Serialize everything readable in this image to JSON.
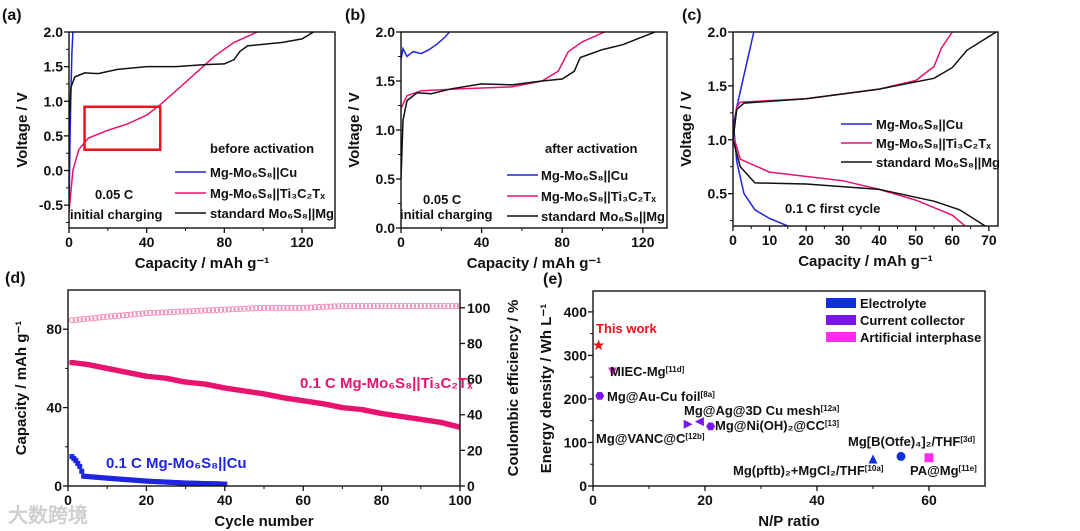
{
  "watermark": "大数跨境",
  "colors": {
    "cu": "#1f24e0",
    "ti": "#e8136f",
    "std": "#111111",
    "box": "#e8141e",
    "electrolyte": "#1030e0",
    "collector": "#7a16e8",
    "interphase": "#ff2cf0",
    "thiswork": "#e8141e"
  },
  "chart_data": [
    {
      "id": "a",
      "panel_label": "(a)",
      "type": "line",
      "xlabel": "Capacity / mAh g⁻¹",
      "ylabel": "Voltage / V",
      "xlim": [
        0,
        137
      ],
      "ylim": [
        -0.83,
        2.0
      ],
      "xticks": [
        0,
        40,
        80,
        120
      ],
      "yticks": [
        -0.5,
        0.0,
        0.5,
        1.0,
        1.5,
        2.0
      ],
      "title": "before activation",
      "note": [
        "0.05 C",
        "initial charging"
      ],
      "highlight_box": {
        "x": [
          8,
          47
        ],
        "y": [
          0.3,
          0.92
        ]
      },
      "series": [
        {
          "name": "Mg-Mo₆S₈||Cu",
          "color_key": "cu",
          "points": [
            [
              0,
              -0.6
            ],
            [
              0.5,
              0.4
            ],
            [
              1,
              1.1
            ],
            [
              1.5,
              1.7
            ],
            [
              2,
              2.0
            ]
          ]
        },
        {
          "name": "Mg-Mo₆S₈||Ti₃C₂Tₓ",
          "color_key": "ti",
          "points": [
            [
              0,
              -0.6
            ],
            [
              2,
              0.0
            ],
            [
              5,
              0.3
            ],
            [
              10,
              0.47
            ],
            [
              20,
              0.58
            ],
            [
              30,
              0.67
            ],
            [
              40,
              0.8
            ],
            [
              47,
              0.95
            ],
            [
              55,
              1.15
            ],
            [
              65,
              1.4
            ],
            [
              75,
              1.65
            ],
            [
              85,
              1.85
            ],
            [
              97,
              2.0
            ]
          ]
        },
        {
          "name": "standard Mo₆S₈||Mg",
          "color_key": "std",
          "points": [
            [
              0,
              0.6
            ],
            [
              1,
              1.2
            ],
            [
              3,
              1.35
            ],
            [
              8,
              1.41
            ],
            [
              15,
              1.4
            ],
            [
              25,
              1.46
            ],
            [
              40,
              1.5
            ],
            [
              55,
              1.5
            ],
            [
              70,
              1.53
            ],
            [
              80,
              1.54
            ],
            [
              85,
              1.6
            ],
            [
              88,
              1.72
            ],
            [
              92,
              1.8
            ],
            [
              110,
              1.85
            ],
            [
              120,
              1.9
            ],
            [
              126,
              2.0
            ]
          ]
        }
      ]
    },
    {
      "id": "b",
      "panel_label": "(b)",
      "type": "line",
      "xlabel": "Capacity / mAh g⁻¹",
      "ylabel": "Voltage / V",
      "xlim": [
        0,
        132
      ],
      "ylim": [
        0,
        2.0
      ],
      "xticks": [
        0,
        40,
        80,
        120
      ],
      "yticks": [
        0.0,
        0.5,
        1.0,
        1.5,
        2.0
      ],
      "title": "after activation",
      "note": [
        "0.05 C",
        "initial charging"
      ],
      "series": [
        {
          "name": "Mg-Mo₆S₈||Cu",
          "color_key": "cu",
          "points": [
            [
              0,
              1.72
            ],
            [
              1,
              1.83
            ],
            [
              3,
              1.75
            ],
            [
              6,
              1.8
            ],
            [
              10,
              1.78
            ],
            [
              14,
              1.82
            ],
            [
              18,
              1.88
            ],
            [
              22,
              1.95
            ],
            [
              24,
              2.0
            ]
          ]
        },
        {
          "name": "Mg-Mo₆S₈||Ti₃C₂Tₓ",
          "color_key": "ti",
          "points": [
            [
              0,
              1.22
            ],
            [
              3,
              1.35
            ],
            [
              10,
              1.4
            ],
            [
              30,
              1.42
            ],
            [
              55,
              1.44
            ],
            [
              70,
              1.5
            ],
            [
              78,
              1.6
            ],
            [
              83,
              1.8
            ],
            [
              90,
              1.9
            ],
            [
              101,
              2.0
            ]
          ]
        },
        {
          "name": "standard Mo₆S₈||Mg",
          "color_key": "std",
          "points": [
            [
              0,
              0.5
            ],
            [
              1,
              1.1
            ],
            [
              3,
              1.3
            ],
            [
              8,
              1.38
            ],
            [
              15,
              1.37
            ],
            [
              25,
              1.42
            ],
            [
              40,
              1.47
            ],
            [
              55,
              1.46
            ],
            [
              70,
              1.5
            ],
            [
              80,
              1.52
            ],
            [
              86,
              1.6
            ],
            [
              89,
              1.74
            ],
            [
              100,
              1.82
            ],
            [
              110,
              1.87
            ],
            [
              126,
              2.0
            ]
          ]
        }
      ]
    },
    {
      "id": "c",
      "panel_label": "(c)",
      "type": "line",
      "xlabel": "Capacity / mAh g⁻¹",
      "ylabel": "Voltage / V",
      "xlim": [
        0,
        72.5
      ],
      "ylim": [
        0.2,
        2.0
      ],
      "xticks": [
        0,
        10,
        20,
        30,
        40,
        50,
        60,
        70
      ],
      "yticks": [
        0.5,
        1.0,
        1.5,
        2.0
      ],
      "note": [
        "0.1 C first cycle"
      ],
      "series": [
        {
          "name": "Mg-Mo₆S₈||Cu",
          "color_key": "cu",
          "points": [
            [
              0,
              1.1
            ],
            [
              1,
              1.3
            ],
            [
              3,
              1.6
            ],
            [
              5.7,
              2.0
            ]
          ],
          "discharge": [
            [
              0,
              1.2
            ],
            [
              1,
              0.8
            ],
            [
              3,
              0.5
            ],
            [
              6,
              0.35
            ],
            [
              10,
              0.27
            ],
            [
              15,
              0.2
            ]
          ]
        },
        {
          "name": "Mg-Mo₆S₈||Ti₃C₂Tₓ",
          "color_key": "ti",
          "points": [
            [
              0,
              1.0
            ],
            [
              1,
              1.3
            ],
            [
              2,
              1.35
            ],
            [
              20,
              1.38
            ],
            [
              40,
              1.47
            ],
            [
              50,
              1.55
            ],
            [
              55,
              1.68
            ],
            [
              57,
              1.85
            ],
            [
              60,
              2.0
            ]
          ],
          "discharge": [
            [
              0,
              1.05
            ],
            [
              2,
              0.82
            ],
            [
              10,
              0.7
            ],
            [
              30,
              0.62
            ],
            [
              40,
              0.54
            ],
            [
              50,
              0.44
            ],
            [
              60,
              0.3
            ],
            [
              63.5,
              0.2
            ]
          ]
        },
        {
          "name": "standard Mo₆S₈||Mg",
          "color_key": "std",
          "points": [
            [
              0,
              1.0
            ],
            [
              1,
              1.28
            ],
            [
              3,
              1.34
            ],
            [
              20,
              1.38
            ],
            [
              40,
              1.47
            ],
            [
              55,
              1.57
            ],
            [
              60,
              1.67
            ],
            [
              64,
              1.83
            ],
            [
              72,
              2.0
            ]
          ],
          "discharge": [
            [
              0,
              1.0
            ],
            [
              2,
              0.75
            ],
            [
              6,
              0.6
            ],
            [
              20,
              0.59
            ],
            [
              40,
              0.54
            ],
            [
              55,
              0.43
            ],
            [
              62,
              0.35
            ],
            [
              69,
              0.2
            ]
          ]
        }
      ]
    },
    {
      "id": "d",
      "panel_label": "(d)",
      "type": "scatter",
      "xlabel": "Cycle number",
      "ylabel": "Capacity / mAh g⁻¹",
      "y2label": "Coulombic efficiency / %",
      "xlim": [
        0,
        100
      ],
      "ylim": [
        0,
        100
      ],
      "y2lim": [
        0,
        110
      ],
      "xticks": [
        0,
        20,
        40,
        60,
        80,
        100
      ],
      "yticks": [
        0,
        40,
        80
      ],
      "y2ticks": [
        0,
        20,
        40,
        60,
        80,
        100
      ],
      "series": [
        {
          "name": "0.1 C Mg-Mo₆S₈||Ti₃C₂Tₓ",
          "color_key": "ti",
          "axis": "left",
          "marker": "square",
          "points": [
            [
              1,
              63
            ],
            [
              5,
              62
            ],
            [
              10,
              60
            ],
            [
              15,
              58
            ],
            [
              20,
              56
            ],
            [
              25,
              55
            ],
            [
              30,
              53
            ],
            [
              35,
              52
            ],
            [
              40,
              50
            ],
            [
              45,
              48.5
            ],
            [
              50,
              47
            ],
            [
              55,
              45
            ],
            [
              60,
              43.5
            ],
            [
              65,
              42
            ],
            [
              70,
              40
            ],
            [
              75,
              39
            ],
            [
              80,
              37
            ],
            [
              85,
              35.5
            ],
            [
              90,
              34
            ],
            [
              95,
              32.5
            ],
            [
              100,
              30
            ]
          ]
        },
        {
          "name": "0.1 C Mg-Mo₆S₈||Cu",
          "color_key": "cu",
          "axis": "left",
          "marker": "square",
          "points": [
            [
              1,
              15
            ],
            [
              2,
              13
            ],
            [
              3,
              10
            ],
            [
              4,
              5
            ],
            [
              10,
              4
            ],
            [
              20,
              2.5
            ],
            [
              30,
              1.5
            ],
            [
              40,
              1
            ]
          ]
        },
        {
          "name": "Coulombic efficiency Ti₃C₂Tₓ",
          "color_key": "ti",
          "axis": "right",
          "marker": "open-circle",
          "points": [
            [
              1,
              93
            ],
            [
              10,
              95
            ],
            [
              20,
              97
            ],
            [
              30,
              98
            ],
            [
              40,
              99
            ],
            [
              50,
              100
            ],
            [
              60,
              100
            ],
            [
              70,
              101
            ],
            [
              80,
              101
            ],
            [
              90,
              101
            ],
            [
              100,
              101
            ]
          ]
        }
      ]
    },
    {
      "id": "e",
      "panel_label": "(e)",
      "type": "scatter",
      "xlabel": "N/P ratio",
      "ylabel": "Energy density / Wh L⁻¹",
      "xlim": [
        0,
        70
      ],
      "ylim": [
        0,
        448
      ],
      "xticks": [
        0,
        20,
        40,
        60
      ],
      "yticks": [
        0,
        100,
        200,
        300,
        400
      ],
      "legend": [
        {
          "name": "Electrolyte",
          "color_key": "electrolyte"
        },
        {
          "name": "Current collector",
          "color_key": "collector"
        },
        {
          "name": "Artificial interphase",
          "color_key": "interphase"
        }
      ],
      "points": [
        {
          "label": "This work",
          "ref": "",
          "x": 1,
          "y": 323,
          "marker": "star",
          "color_key": "thiswork"
        },
        {
          "label": "MIEC-Mg",
          "ref": "[11d]",
          "x": 3.5,
          "y": 262,
          "marker": "tri-down",
          "color_key": "interphase"
        },
        {
          "label": "Mg@Au-Cu foil",
          "ref": "[8a]",
          "x": 1.2,
          "y": 207,
          "marker": "hexagon",
          "color_key": "collector"
        },
        {
          "label": "Mg@VANC@C",
          "ref": "[12b]",
          "x": 17,
          "y": 142,
          "marker": "tri-right",
          "color_key": "collector"
        },
        {
          "label": "Mg@Ag@3D Cu mesh",
          "ref": "[12a]",
          "x": 19,
          "y": 148,
          "marker": "tri-left",
          "color_key": "collector"
        },
        {
          "label": "Mg@Ni(OH)₂@CC",
          "ref": "[13]",
          "x": 21,
          "y": 137,
          "marker": "hexagon",
          "color_key": "collector"
        },
        {
          "label": "Mg(pftb)₂+MgCl₂/THF",
          "ref": "[10a]",
          "x": 50,
          "y": 62,
          "marker": "triangle",
          "color_key": "electrolyte"
        },
        {
          "label": "Mg[B(Otfe)₄]₂/THF",
          "ref": "[3d]",
          "x": 55,
          "y": 68,
          "marker": "circle",
          "color_key": "electrolyte"
        },
        {
          "label": "PA@Mg",
          "ref": "[11e]",
          "x": 60,
          "y": 65,
          "marker": "square",
          "color_key": "interphase"
        }
      ]
    }
  ]
}
